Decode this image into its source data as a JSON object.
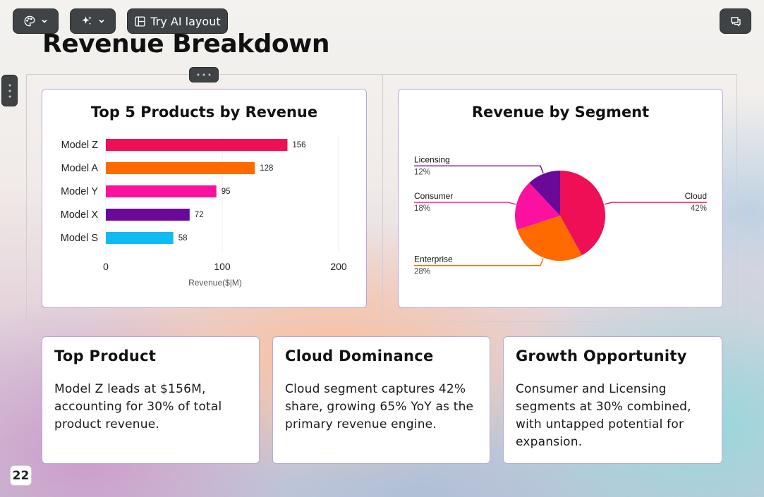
{
  "toolbar": {
    "theme_icon": "palette-icon",
    "ai_icon": "sparkles-icon",
    "layout_icon": "layout-icon",
    "try_ai_layout_label": "Try AI layout",
    "comment_icon": "comment-icon"
  },
  "page": {
    "title": "Revenue Breakdown",
    "page_number": "22"
  },
  "bar_chart": {
    "title": "Top 5 Products by Revenue",
    "xlabel": "Revenue($|M)"
  },
  "pie_chart": {
    "title": "Revenue by Segment"
  },
  "chart_data": [
    {
      "type": "bar",
      "orientation": "horizontal",
      "title": "Top 5 Products by Revenue",
      "xlabel": "Revenue($|M)",
      "ylabel": "",
      "categories": [
        "Model Z",
        "Model A",
        "Model Y",
        "Model X",
        "Model S"
      ],
      "values": [
        156,
        128,
        95,
        72,
        58
      ],
      "data_labels": [
        "156",
        "128",
        "95",
        "72",
        "58"
      ],
      "colors": [
        "#ee0f57",
        "#ff6a00",
        "#fb11a0",
        "#6a0899",
        "#11bbf2"
      ],
      "xlim": [
        0,
        200
      ],
      "xticks": [
        "0",
        "100",
        "200"
      ],
      "grid": true
    },
    {
      "type": "pie",
      "title": "Revenue by Segment",
      "slices": [
        {
          "label": "Cloud",
          "value": 42,
          "value_label": "42%",
          "color": "#ee0f57"
        },
        {
          "label": "Enterprise",
          "value": 28,
          "value_label": "28%",
          "color": "#ff6a00"
        },
        {
          "label": "Consumer",
          "value": 18,
          "value_label": "18%",
          "color": "#fb11a0"
        },
        {
          "label": "Licensing",
          "value": 12,
          "value_label": "12%",
          "color": "#6a0899"
        }
      ]
    }
  ],
  "insights": [
    {
      "title": "Top Product",
      "text": "Model Z leads at $156M, accounting for 30% of total product revenue."
    },
    {
      "title": "Cloud Dominance",
      "text": "Cloud segment captures 42% share, growing 65% YoY as the primary revenue engine."
    },
    {
      "title": "Growth Opportunity",
      "text": "Consumer and Licensing segments at 30% combined, with untapped potential for expansion."
    }
  ]
}
